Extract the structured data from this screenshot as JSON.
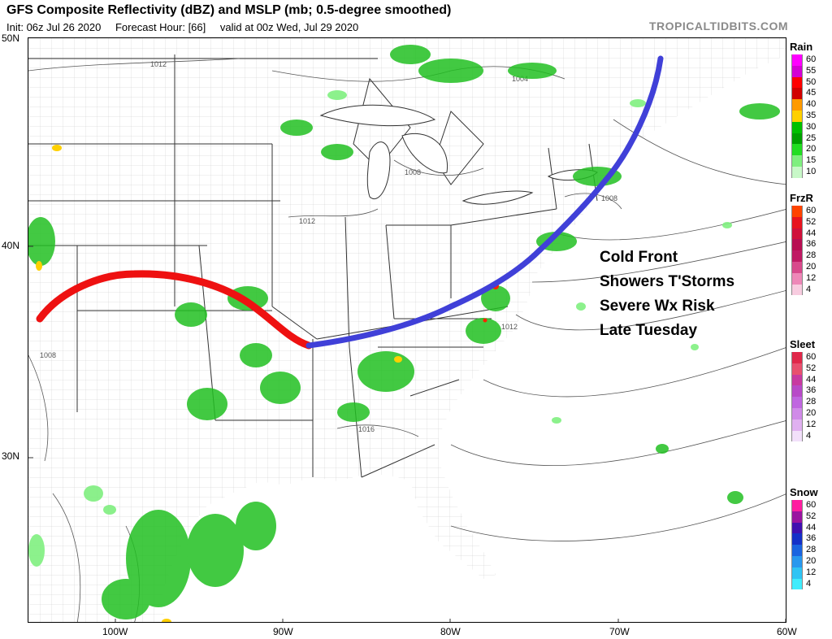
{
  "header": {
    "title": "GFS Composite Reflectivity (dBZ) and MSLP (mb; 0.5-degree smoothed)",
    "init": "Init: 06z Jul 26 2020",
    "forecast_hour": "Forecast Hour: [66]",
    "valid": "valid at 00z Wed, Jul 29 2020",
    "brand": "TROPICALTIDBITS.COM"
  },
  "axes": {
    "lat_labels": [
      "50N",
      "40N",
      "30N"
    ],
    "lon_labels": [
      "100W",
      "90W",
      "80W",
      "70W",
      "60W"
    ]
  },
  "annotation": {
    "lines": [
      "Cold Front",
      "Showers T'Storms",
      "Severe Wx Risk",
      "Late Tuesday"
    ]
  },
  "isobar_labels": [
    "1012",
    "1004",
    "1008",
    "1012",
    "1008",
    "1012",
    "1008",
    "1016"
  ],
  "legends": [
    {
      "title": "Rain",
      "levels": [
        "60",
        "55",
        "50",
        "45",
        "40",
        "35",
        "30",
        "25",
        "20",
        "15",
        "10"
      ],
      "colors": [
        "#ff00ff",
        "#d400d4",
        "#ff0000",
        "#d10000",
        "#ff9a00",
        "#ffd000",
        "#00c000",
        "#00a000",
        "#22dd22",
        "#7fef7f",
        "#c8f8c8"
      ]
    },
    {
      "title": "FrzR",
      "levels": [
        "60",
        "52",
        "44",
        "36",
        "28",
        "20",
        "12",
        "4"
      ],
      "colors": [
        "#ff4400",
        "#e8141e",
        "#d0103a",
        "#b80e52",
        "#c01a64",
        "#d84a8c",
        "#ee88b8",
        "#f8cce0"
      ]
    },
    {
      "title": "Sleet",
      "levels": [
        "60",
        "52",
        "44",
        "36",
        "28",
        "20",
        "12",
        "4"
      ],
      "colors": [
        "#e0284a",
        "#e8506e",
        "#c83aa0",
        "#b84ac8",
        "#c066e0",
        "#d08ae8",
        "#e0b0f0",
        "#f2e0fa"
      ]
    },
    {
      "title": "Snow",
      "levels": [
        "60",
        "52",
        "44",
        "36",
        "28",
        "20",
        "12",
        "4"
      ],
      "colors": [
        "#ff1ea0",
        "#9a14a0",
        "#4010b0",
        "#1430c8",
        "#1a64e0",
        "#2898ee",
        "#30c4f4",
        "#40ecfc"
      ]
    }
  ],
  "colors": {
    "warm_front_segment": "#ee1111",
    "cold_front_segment": "#4040d8",
    "reflectivity_light": "#7fef7f",
    "reflectivity_moderate": "#22c022",
    "reflectivity_heavy": "#ffd000",
    "reflectivity_intense": "#ff2200"
  }
}
